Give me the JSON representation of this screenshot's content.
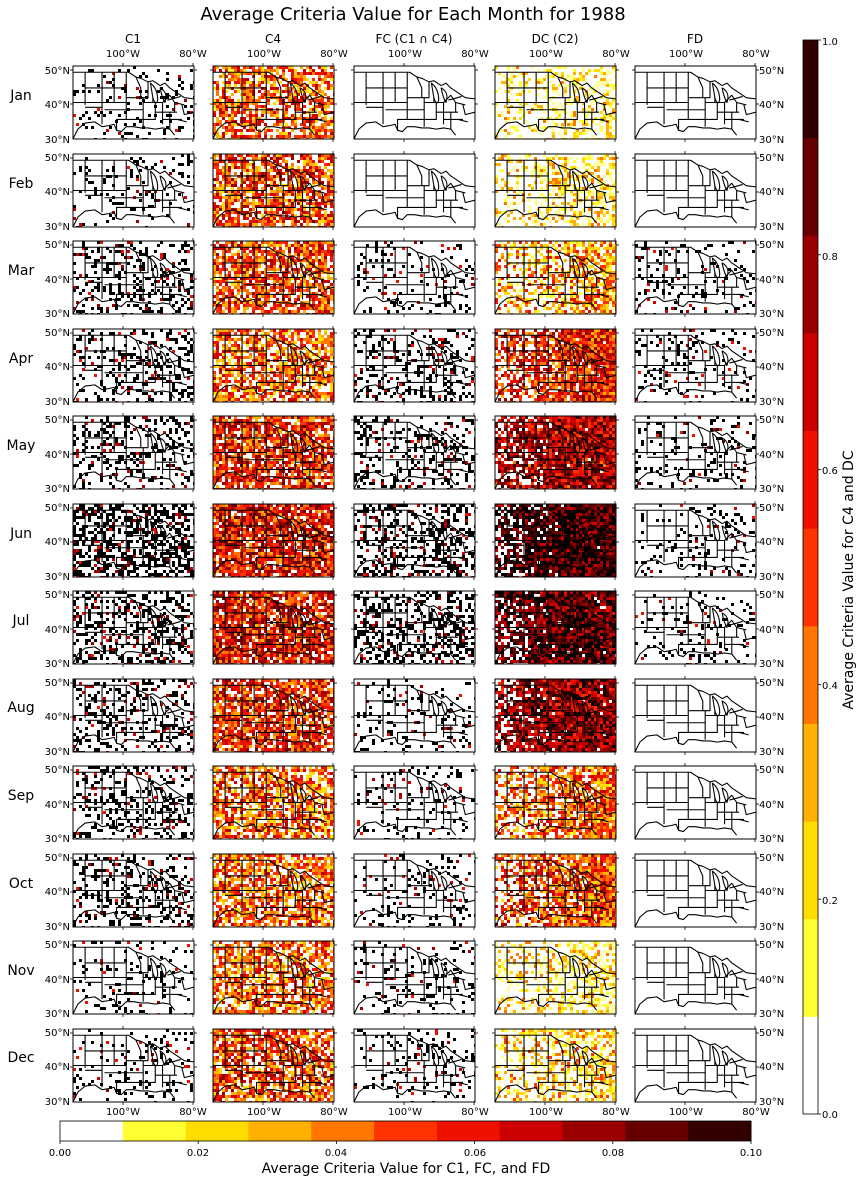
{
  "title": "Average Criteria Value for Each Month for 1988",
  "columns": [
    "C1",
    "C4",
    "FC (C1 ∩ C4)",
    "DC (C2)",
    "FD"
  ],
  "rows": [
    "Jan",
    "Feb",
    "Mar",
    "Apr",
    "May",
    "Jun",
    "Jul",
    "Aug",
    "Sep",
    "Oct",
    "Nov",
    "Dec"
  ],
  "lon_ticks": [
    "100°W",
    "80°W"
  ],
  "lat_ticks": [
    "50°N",
    "40°N",
    "30°N"
  ],
  "colorbar_right": {
    "label": "Average Criteria Value for C4 and DC",
    "ticks": [
      "0.0",
      "0.2",
      "0.4",
      "0.6",
      "0.8",
      "1.0"
    ],
    "range": [
      0,
      1
    ]
  },
  "colorbar_bottom": {
    "label": "Average Criteria Value for C1, FC, and FD",
    "ticks": [
      "0.00",
      "0.02",
      "0.04",
      "0.06",
      "0.08",
      "0.10"
    ],
    "range": [
      0,
      0.1
    ]
  },
  "colors": [
    "#ffffff",
    "#ffff99",
    "#ffff33",
    "#ffdd00",
    "#ffb000",
    "#ff7700",
    "#ff3300",
    "#ee1100",
    "#cc0000",
    "#990000",
    "#660000",
    "#330000",
    "#000000"
  ],
  "chart_data": {
    "type": "heatmap",
    "title": "Average Criteria Value for Each Month for 1988",
    "panels_layout": "12 rows (months) x 5 columns (criteria)",
    "columns": [
      "C1",
      "C4",
      "FC (C1 ∩ C4)",
      "DC (C2)",
      "FD"
    ],
    "rows": [
      "Jan",
      "Feb",
      "Mar",
      "Apr",
      "May",
      "Jun",
      "Jul",
      "Aug",
      "Sep",
      "Oct",
      "Nov",
      "Dec"
    ],
    "x_ticks": [
      "100°W",
      "80°W"
    ],
    "y_ticks": [
      "50°N",
      "40°N",
      "30°N"
    ],
    "scale_C4_DC": {
      "range": [
        0,
        1
      ],
      "levels": 12
    },
    "scale_C1_FC_FD": {
      "range": [
        0,
        0.1
      ],
      "levels": 12
    },
    "approx_mean_intensity": {
      "C1": [
        0.01,
        0.01,
        0.02,
        0.02,
        0.02,
        0.04,
        0.03,
        0.02,
        0.02,
        0.02,
        0.01,
        0.01
      ],
      "C4": [
        0.45,
        0.5,
        0.5,
        0.45,
        0.55,
        0.6,
        0.6,
        0.55,
        0.45,
        0.45,
        0.45,
        0.5
      ],
      "FC": [
        0.0,
        0.0,
        0.01,
        0.02,
        0.02,
        0.03,
        0.03,
        0.01,
        0.01,
        0.01,
        0.01,
        0.01
      ],
      "DC": [
        0.15,
        0.2,
        0.35,
        0.55,
        0.7,
        0.9,
        0.85,
        0.75,
        0.45,
        0.5,
        0.2,
        0.25
      ],
      "FD": [
        0.0,
        0.0,
        0.01,
        0.01,
        0.01,
        0.01,
        0.01,
        0.0,
        0.0,
        0.0,
        0.0,
        0.0
      ]
    }
  }
}
